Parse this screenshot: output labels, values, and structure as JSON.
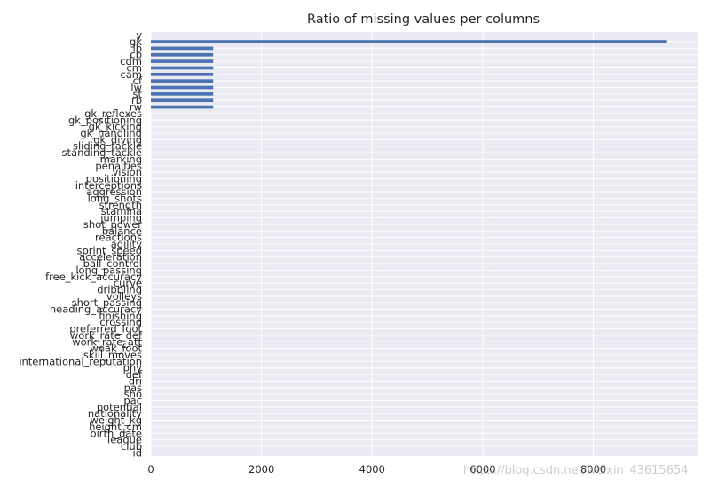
{
  "watermark": "https://blog.csdn.net/weixin_43615654",
  "chart_data": {
    "type": "bar",
    "orientation": "horizontal",
    "title": "Ratio of missing values per columns",
    "xlabel": "",
    "ylabel": "",
    "xlim": [
      0,
      9900
    ],
    "xticks": [
      0,
      2000,
      4000,
      6000,
      8000
    ],
    "grid": true,
    "bar_color": "#4c72b0",
    "background_color": "#eaeaf2",
    "categories": [
      "id",
      "club",
      "league",
      "birth_date",
      "height_cm",
      "weight_kg",
      "nationality",
      "potential",
      "pac",
      "sho",
      "pas",
      "dri",
      "def",
      "phy",
      "international_reputation",
      "skill_moves",
      "weak_foot",
      "work_rate_att",
      "work_rate_def",
      "preferred_foot",
      "crossing",
      "finishing",
      "heading_accuracy",
      "short_passing",
      "volleys",
      "dribbling",
      "curve",
      "free_kick_accuracy",
      "long_passing",
      "ball_control",
      "acceleration",
      "sprint_speed",
      "agility",
      "reactions",
      "balance",
      "shot_power",
      "jumping",
      "stamina",
      "strength",
      "long_shots",
      "aggression",
      "interceptions",
      "positioning",
      "vision",
      "penalties",
      "marking",
      "standing_tackle",
      "sliding_tackle",
      "gk_diving",
      "gk_handling",
      "gk_kicking",
      "gk_positioning",
      "gk_reflexes",
      "rw",
      "rb",
      "st",
      "lw",
      "cf",
      "cam",
      "cm",
      "cdm",
      "cb",
      "lb",
      "gk",
      "y"
    ],
    "values": [
      0,
      0,
      0,
      0,
      0,
      0,
      0,
      0,
      0,
      0,
      0,
      0,
      0,
      0,
      0,
      0,
      0,
      0,
      0,
      0,
      0,
      0,
      0,
      0,
      0,
      0,
      0,
      0,
      0,
      0,
      0,
      0,
      0,
      0,
      0,
      0,
      0,
      0,
      0,
      0,
      0,
      0,
      0,
      0,
      0,
      0,
      0,
      0,
      0,
      0,
      0,
      0,
      0,
      1126,
      1126,
      1126,
      1126,
      1126,
      1126,
      1126,
      1126,
      1126,
      1126,
      9315,
      0
    ]
  }
}
